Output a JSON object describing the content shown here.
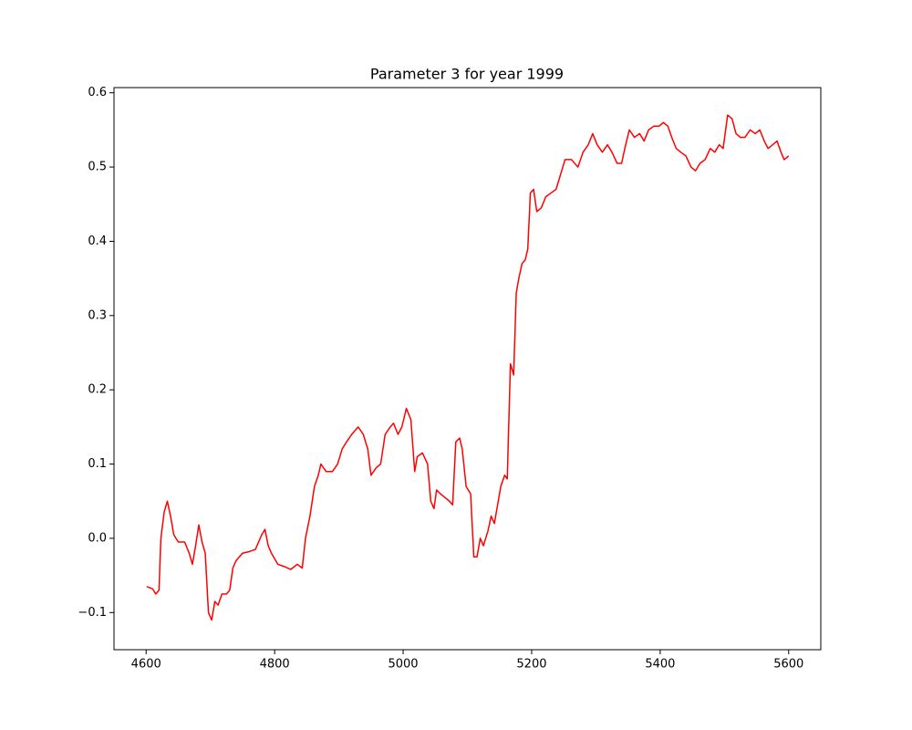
{
  "chart_data": {
    "type": "line",
    "title": "Parameter 3 for year 1999",
    "x": [
      4601,
      4610,
      4615,
      4620,
      4623,
      4628,
      4633,
      4638,
      4643,
      4650,
      4660,
      4667,
      4672,
      4677,
      4682,
      4687,
      4692,
      4697,
      4702,
      4707,
      4712,
      4718,
      4725,
      4730,
      4735,
      4740,
      4750,
      4760,
      4770,
      4780,
      4785,
      4790,
      4795,
      4805,
      4815,
      4825,
      4835,
      4843,
      4848,
      4855,
      4862,
      4868,
      4872,
      4880,
      4890,
      4898,
      4905,
      4912,
      4920,
      4930,
      4938,
      4945,
      4950,
      4958,
      4965,
      4972,
      4980,
      4985,
      4992,
      4998,
      5005,
      5012,
      5018,
      5022,
      5030,
      5038,
      5043,
      5048,
      5052,
      5058,
      5065,
      5072,
      5077,
      5082,
      5088,
      5092,
      5098,
      5105,
      5110,
      5115,
      5120,
      5125,
      5132,
      5137,
      5142,
      5148,
      5152,
      5158,
      5162,
      5167,
      5172,
      5176,
      5180,
      5185,
      5190,
      5194,
      5198,
      5203,
      5208,
      5215,
      5222,
      5230,
      5238,
      5245,
      5252,
      5262,
      5272,
      5280,
      5288,
      5295,
      5302,
      5310,
      5318,
      5325,
      5333,
      5340,
      5345,
      5352,
      5360,
      5368,
      5375,
      5382,
      5390,
      5398,
      5405,
      5412,
      5418,
      5425,
      5432,
      5440,
      5448,
      5455,
      5462,
      5470,
      5478,
      5485,
      5492,
      5498,
      5505,
      5512,
      5518,
      5525,
      5532,
      5540,
      5548,
      5555,
      5562,
      5568,
      5575,
      5582,
      5588,
      5593,
      5600
    ],
    "series": [
      {
        "color": "#ff0000",
        "values": [
          -0.065,
          -0.068,
          -0.075,
          -0.07,
          0.0,
          0.035,
          0.05,
          0.03,
          0.005,
          -0.005,
          -0.005,
          -0.02,
          -0.035,
          -0.01,
          0.018,
          -0.005,
          -0.02,
          -0.1,
          -0.11,
          -0.085,
          -0.09,
          -0.075,
          -0.075,
          -0.07,
          -0.04,
          -0.03,
          -0.02,
          -0.018,
          -0.015,
          0.005,
          0.012,
          -0.01,
          -0.02,
          -0.035,
          -0.038,
          -0.042,
          -0.035,
          -0.04,
          0.0,
          0.03,
          0.07,
          0.085,
          0.1,
          0.09,
          0.09,
          0.1,
          0.12,
          0.13,
          0.14,
          0.15,
          0.14,
          0.12,
          0.085,
          0.095,
          0.1,
          0.14,
          0.15,
          0.155,
          0.14,
          0.15,
          0.175,
          0.16,
          0.09,
          0.11,
          0.115,
          0.1,
          0.05,
          0.04,
          0.065,
          0.06,
          0.055,
          0.05,
          0.045,
          0.13,
          0.135,
          0.12,
          0.07,
          0.06,
          -0.025,
          -0.025,
          0.0,
          -0.01,
          0.01,
          0.03,
          0.02,
          0.05,
          0.07,
          0.085,
          0.08,
          0.235,
          0.22,
          0.33,
          0.35,
          0.37,
          0.375,
          0.39,
          0.465,
          0.47,
          0.44,
          0.445,
          0.46,
          0.465,
          0.47,
          0.49,
          0.51,
          0.51,
          0.5,
          0.52,
          0.53,
          0.545,
          0.53,
          0.52,
          0.53,
          0.52,
          0.505,
          0.505,
          0.525,
          0.55,
          0.54,
          0.545,
          0.535,
          0.55,
          0.555,
          0.555,
          0.56,
          0.555,
          0.54,
          0.525,
          0.52,
          0.515,
          0.5,
          0.495,
          0.505,
          0.51,
          0.525,
          0.52,
          0.53,
          0.525,
          0.57,
          0.565,
          0.545,
          0.54,
          0.54,
          0.55,
          0.545,
          0.55,
          0.535,
          0.525,
          0.53,
          0.535,
          0.52,
          0.51,
          0.515
        ]
      }
    ],
    "xlim": [
      4550,
      5650
    ],
    "ylim": [
      -0.15,
      0.607
    ],
    "xticks": [
      4600,
      4800,
      5000,
      5200,
      5400,
      5600
    ],
    "yticks": [
      {
        "value": -0.1,
        "label": "−0.1"
      },
      {
        "value": 0,
        "label": "0.0"
      },
      0.1,
      0.2,
      0.3,
      0.4,
      0.5,
      0.6
    ]
  }
}
